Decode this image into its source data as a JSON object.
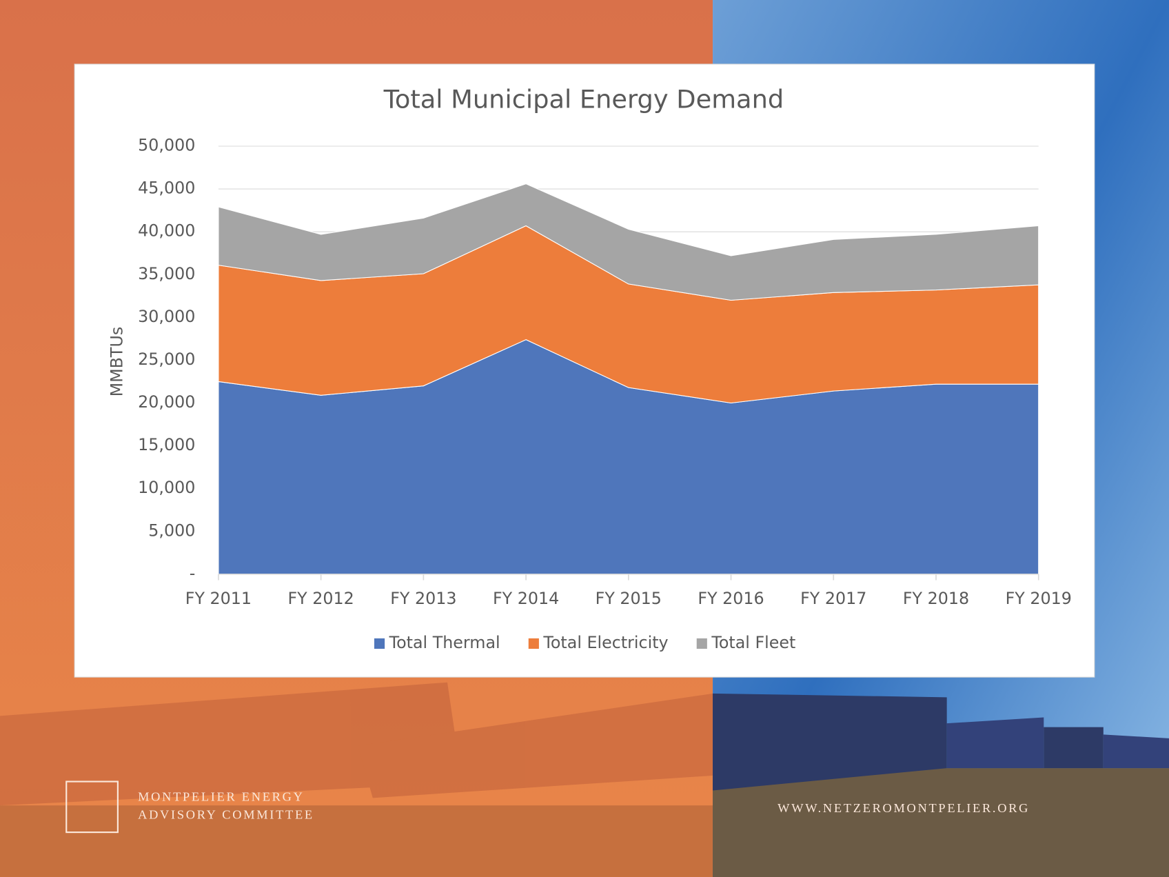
{
  "chart_data": {
    "type": "stacked-area",
    "title": "Total Municipal Energy Demand",
    "y_label": "MMBTUs",
    "categories": [
      "FY 2011",
      "FY 2012",
      "FY 2013",
      "FY 2014",
      "FY 2015",
      "FY 2016",
      "FY 2017",
      "FY 2018",
      "FY 2019"
    ],
    "series": [
      {
        "name": "Total Thermal",
        "color": "#4f76bb",
        "values": [
          22500,
          20900,
          22000,
          27400,
          21800,
          20000,
          21400,
          22200,
          22200
        ]
      },
      {
        "name": "Total Electricity",
        "color": "#ed7d3b",
        "values": [
          13600,
          13400,
          13100,
          13300,
          12100,
          12000,
          11500,
          11000,
          11600
        ]
      },
      {
        "name": "Total Fleet",
        "color": "#a5a5a5",
        "values": [
          6800,
          5400,
          6500,
          4900,
          6400,
          5200,
          6200,
          6500,
          6900
        ]
      }
    ],
    "ylim": [
      0,
      50000
    ],
    "yticks": [
      {
        "value": 0,
        "label": "-"
      },
      {
        "value": 5000,
        "label": "5,000"
      },
      {
        "value": 10000,
        "label": "10,000"
      },
      {
        "value": 15000,
        "label": "15,000"
      },
      {
        "value": 20000,
        "label": "20,000"
      },
      {
        "value": 25000,
        "label": "25,000"
      },
      {
        "value": 30000,
        "label": "30,000"
      },
      {
        "value": 35000,
        "label": "35,000"
      },
      {
        "value": 40000,
        "label": "40,000"
      },
      {
        "value": 45000,
        "label": "45,000"
      },
      {
        "value": 50000,
        "label": "50,000"
      }
    ],
    "grid": true,
    "legend": "bottom"
  },
  "footer": {
    "org_line_1": "MONTPELIER ENERGY",
    "org_line_2": "ADVISORY COMMITTEE",
    "url": "WWW.NETZEROMONTPELIER.ORG"
  }
}
